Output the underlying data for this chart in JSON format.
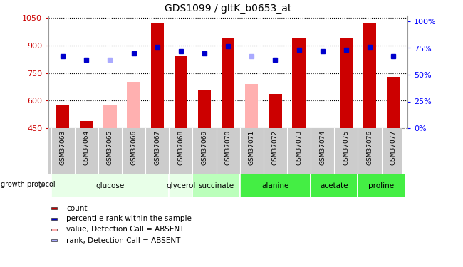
{
  "title": "GDS1099 / gltK_b0653_at",
  "samples": [
    "GSM37063",
    "GSM37064",
    "GSM37065",
    "GSM37066",
    "GSM37067",
    "GSM37068",
    "GSM37069",
    "GSM37070",
    "GSM37071",
    "GSM37072",
    "GSM37073",
    "GSM37074",
    "GSM37075",
    "GSM37076",
    "GSM37077"
  ],
  "count_values": [
    575,
    490,
    null,
    null,
    1020,
    840,
    660,
    940,
    null,
    635,
    940,
    null,
    940,
    1020,
    730
  ],
  "absent_bar_values": [
    null,
    null,
    575,
    700,
    null,
    null,
    null,
    null,
    690,
    null,
    null,
    null,
    null,
    null,
    null
  ],
  "percentile_values": [
    840,
    820,
    null,
    855,
    890,
    870,
    855,
    895,
    null,
    820,
    875,
    870,
    875,
    890,
    840
  ],
  "absent_rank_values": [
    null,
    null,
    820,
    null,
    null,
    null,
    null,
    null,
    840,
    null,
    null,
    null,
    null,
    null,
    null
  ],
  "groups_info": [
    {
      "name": "glucose",
      "start": 0,
      "end": 4,
      "color": "#e8ffe8"
    },
    {
      "name": "glycerol",
      "start": 5,
      "end": 5,
      "color": "#e8ffe8"
    },
    {
      "name": "succinate",
      "start": 6,
      "end": 7,
      "color": "#bbffbb"
    },
    {
      "name": "alanine",
      "start": 8,
      "end": 10,
      "color": "#44ee44"
    },
    {
      "name": "acetate",
      "start": 11,
      "end": 12,
      "color": "#44ee44"
    },
    {
      "name": "proline",
      "start": 13,
      "end": 14,
      "color": "#44ee44"
    }
  ],
  "ylim_left": [
    450,
    1060
  ],
  "ylim_right": [
    0,
    105
  ],
  "yticks_left": [
    450,
    600,
    750,
    900,
    1050
  ],
  "yticks_right": [
    0,
    25,
    50,
    75,
    100
  ],
  "count_color": "#cc0000",
  "absent_bar_color": "#ffb0b0",
  "percentile_color": "#0000cc",
  "absent_rank_color": "#aaaaff",
  "xtick_bg_color": "#cccccc",
  "legend_items": [
    {
      "label": "count",
      "color": "#cc0000"
    },
    {
      "label": "percentile rank within the sample",
      "color": "#0000cc"
    },
    {
      "label": "value, Detection Call = ABSENT",
      "color": "#ffb0b0"
    },
    {
      "label": "rank, Detection Call = ABSENT",
      "color": "#aaaaff"
    }
  ]
}
